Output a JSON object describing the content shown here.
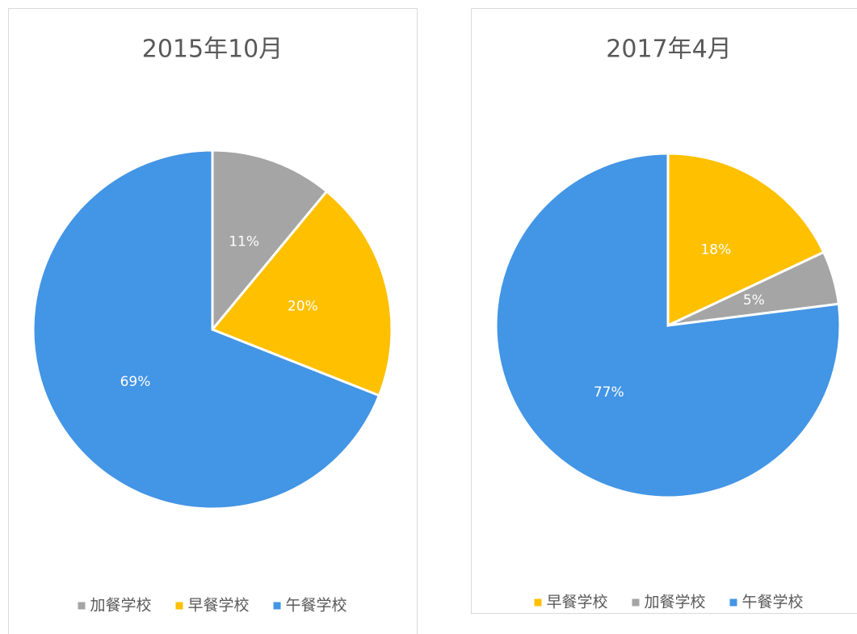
{
  "chart_data": [
    {
      "type": "pie",
      "title": "2015年10月",
      "categories": [
        "加餐学校",
        "早餐学校",
        "午餐学校"
      ],
      "values": [
        11,
        20,
        69
      ],
      "value_labels": [
        "11%",
        "20%",
        "69%"
      ],
      "colors": [
        "#a5a5a5",
        "#ffc000",
        "#4395e5"
      ],
      "legend": "bottom"
    },
    {
      "type": "pie",
      "title": "2017年4月",
      "categories": [
        "早餐学校",
        "加餐学校",
        "午餐学校"
      ],
      "values": [
        18,
        5,
        77
      ],
      "value_labels": [
        "18%",
        "5%",
        "77%"
      ],
      "colors": [
        "#ffc000",
        "#a5a5a5",
        "#4395e5"
      ],
      "legend": "bottom"
    }
  ]
}
